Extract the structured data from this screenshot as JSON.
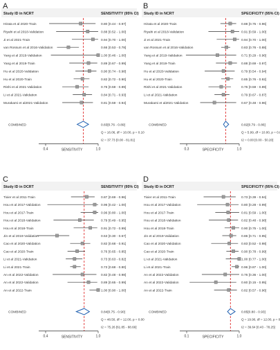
{
  "chart_data": [
    {
      "type": "forest",
      "panel_label": "A",
      "study_header": "Study ID in NCRT",
      "metric_header": "SENSITIVITY (95% CI)",
      "xlabel": "SENSITIVITY",
      "x_ticks": [
        "0.4",
        "1.0"
      ],
      "xlim": [
        0.4,
        1.0
      ],
      "combined_value": 0.83,
      "studies": [
        {
          "label": "Hirata et al 2020-Train",
          "value": 0.8,
          "lo": 0.44,
          "hi": 0.97,
          "ci_text": "0.80 [0.44 - 0.97]"
        },
        {
          "label": "Riyahi et al 2018-Validation",
          "value": 0.88,
          "lo": 0.52,
          "hi": 1.0,
          "ci_text": "0.88 [0.52 - 1.00]"
        },
        {
          "label": "Ji et al 2021-Train",
          "value": 0.94,
          "lo": 0.7,
          "hi": 1.0,
          "ci_text": "0.94 [0.70 - 1.00]"
        },
        {
          "label": "van Rossum et al 2016-Validation",
          "value": 0.66,
          "lo": 0.53,
          "hi": 0.78,
          "ci_text": "0.66 [0.53 - 0.78]"
        },
        {
          "label": "Yang et al 2019-Validation",
          "value": 1.0,
          "lo": 0.46,
          "hi": 1.0,
          "ci_text": "1.00 [0.46 - 1.00]"
        },
        {
          "label": "Yang et al 2019-Train",
          "value": 0.89,
          "lo": 0.67,
          "hi": 0.99,
          "ci_text": "0.89 [0.67 - 0.99]"
        },
        {
          "label": "Hu et al 2020-Validation",
          "value": 0.9,
          "lo": 0.74,
          "hi": 0.98,
          "ci_text": "0.90 [0.74 - 0.98]"
        },
        {
          "label": "Hu et al 2020-Train",
          "value": 0.82,
          "lo": 0.72,
          "hi": 0.9,
          "ci_text": "0.82 [0.72 - 0.90]"
        },
        {
          "label": "Rishi et al 2021-Validation",
          "value": 0.76,
          "lo": 0.59,
          "hi": 0.89,
          "ci_text": "0.76 [0.59 - 0.89]"
        },
        {
          "label": "Li et al 2021-Validation",
          "value": 0.84,
          "lo": 0.71,
          "hi": 0.93,
          "ci_text": "0.84 [0.71 - 0.93]"
        },
        {
          "label": "Murakami et al2021-Validation",
          "value": 0.81,
          "lo": 0.59,
          "hi": 0.94,
          "ci_text": "0.81 [0.59 - 0.94]"
        }
      ],
      "combined": {
        "label": "COMBINED",
        "value": 0.83,
        "lo": 0.76,
        "hi": 0.89,
        "ci_text": "0.83[0.76 - 0.89]"
      },
      "stats": [
        "Q = 16.06, df = 10.00, p = 0.10",
        "I2 = 37.73 [0.00 - 81.81]"
      ]
    },
    {
      "type": "forest",
      "panel_label": "B",
      "study_header": "Study ID in NCRT",
      "metric_header": "SPECIFICITY (95% CI)",
      "xlabel": "SPECIFICITY",
      "x_ticks": [
        "0.3",
        "1.0"
      ],
      "xlim": [
        0.3,
        1.0
      ],
      "combined_value": 0.82,
      "studies": [
        {
          "label": "Hirata et al 2020-Train",
          "value": 0.88,
          "lo": 0.75,
          "hi": 0.96,
          "ci_text": "0.88 [0.75 - 0.96]"
        },
        {
          "label": "Riyahi et al 2018-Validation",
          "value": 0.91,
          "lo": 0.59,
          "hi": 1.0,
          "ci_text": "0.91 [0.59 - 1.00]"
        },
        {
          "label": "Ji et al 2021-Train",
          "value": 0.94,
          "lo": 0.7,
          "hi": 1.0,
          "ci_text": "0.94 [0.70 - 1.00]"
        },
        {
          "label": "van Rossum et al 2016-Validation",
          "value": 0.83,
          "lo": 0.76,
          "hi": 0.88,
          "ci_text": "0.83 [0.76 - 0.88]"
        },
        {
          "label": "Yang et al 2019-Validation",
          "value": 0.71,
          "lo": 0.29,
          "hi": 0.96,
          "ci_text": "0.71 [0.29 - 0.96]"
        },
        {
          "label": "Yang et al 2019-Train",
          "value": 0.88,
          "lo": 0.69,
          "hi": 0.97,
          "ci_text": "0.88 [0.69 - 0.97]"
        },
        {
          "label": "Hu et al 2020-Validation",
          "value": 0.79,
          "lo": 0.54,
          "hi": 0.94,
          "ci_text": "0.79 [0.54 - 0.94]"
        },
        {
          "label": "Hu et al 2020-Train",
          "value": 0.85,
          "lo": 0.76,
          "hi": 0.92,
          "ci_text": "0.85 [0.76 - 0.92]"
        },
        {
          "label": "Rishi et al 2021-Validation",
          "value": 0.76,
          "lo": 0.59,
          "hi": 0.89,
          "ci_text": "0.76 [0.59 - 0.89]"
        },
        {
          "label": "Li et al 2021-Validation",
          "value": 0.79,
          "lo": 0.67,
          "hi": 0.87,
          "ci_text": "0.79 [0.67 - 0.87]"
        },
        {
          "label": "Murakami et al2021-Validation",
          "value": 0.67,
          "lo": 0.48,
          "hi": 0.96,
          "ci_text": "0.67 [0.48 - 0.96]"
        }
      ],
      "combined": {
        "label": "COMBINED",
        "value": 0.82,
        "lo": 0.79,
        "hi": 0.86,
        "ci_text": "0.82[0.79 - 0.86]"
      },
      "stats": [
        "Q = 5.99, df = 10.00, p = 0.82",
        "I2 = 0.00 [0.00 - 50.20]"
      ]
    },
    {
      "type": "forest",
      "panel_label": "C",
      "study_header": "Study ID in DCRT",
      "metric_header": "SENSITIVITY (95% CI)",
      "xlabel": "SENSITIVITY",
      "x_ticks": [
        "0.4",
        "1.0"
      ],
      "xlim": [
        0.4,
        1.0
      ],
      "combined_value": 0.84,
      "studies": [
        {
          "label": "Tixier et al 2011-Train",
          "value": 0.87,
          "lo": 0.69,
          "hi": 0.96,
          "ci_text": "0.87 [0.69 - 0.96]"
        },
        {
          "label": "Hou et al 2017-Validation",
          "value": 0.96,
          "lo": 0.42,
          "hi": 1.0,
          "ci_text": "0.96 [0.42 - 1.00]"
        },
        {
          "label": "Hou et al 2017-Train",
          "value": 0.96,
          "lo": 0.8,
          "hi": 1.0,
          "ci_text": "0.96 [0.80 - 1.00]"
        },
        {
          "label": "Hou et al 2018-Validation",
          "value": 0.79,
          "lo": 0.49,
          "hi": 0.95,
          "ci_text": "0.79 [0.49 - 0.95]"
        },
        {
          "label": "Hou et al 2018-Train",
          "value": 0.91,
          "lo": 0.72,
          "hi": 0.99,
          "ci_text": "0.91 [0.72 - 0.99]"
        },
        {
          "label": "Jin et al 2019-Validation",
          "value": 0.53,
          "lo": 0.3,
          "hi": 0.67,
          "ci_text": "0.53 [0.30 - 0.67]"
        },
        {
          "label": "Cao et al 2020-Validation",
          "value": 0.82,
          "lo": 0.68,
          "hi": 0.91,
          "ci_text": "0.82 [0.68 - 0.91]"
        },
        {
          "label": "Cao et al 2020-Train",
          "value": 0.76,
          "lo": 0.65,
          "hi": 0.85,
          "ci_text": "0.76 [0.65 - 0.85]"
        },
        {
          "label": "Li et al 2021-Validation",
          "value": 0.73,
          "lo": 0.63,
          "hi": 0.82,
          "ci_text": "0.73 [0.63 - 0.82]"
        },
        {
          "label": "Li et al 2021-Train",
          "value": 0.73,
          "lo": 0.68,
          "hi": 0.8,
          "ci_text": "0.73 [0.68 - 0.80]"
        },
        {
          "label": "An et al 2022-Validation",
          "value": 0.82,
          "lo": 0.48,
          "hi": 0.98,
          "ci_text": "0.82 [0.48 - 0.98]"
        },
        {
          "label": "An et al 2022-Validation",
          "value": 0.89,
          "lo": 0.65,
          "hi": 0.99,
          "ci_text": "0.89 [0.65 - 0.99]"
        },
        {
          "label": "An et al 2022-Train",
          "value": 1.0,
          "lo": 0.9,
          "hi": 1.0,
          "ci_text": "1.00 [0.90 - 1.00]"
        }
      ],
      "combined": {
        "label": "COMBINED",
        "value": 0.84,
        "lo": 0.75,
        "hi": 0.9,
        "ci_text": "0.84[0.75 - 0.90]"
      },
      "stats": [
        "Q = 48.50, df = 12.00, p = 0.00",
        "I2 = 75.26 [61.85 - 88.66]"
      ]
    },
    {
      "type": "forest",
      "panel_label": "D",
      "study_header": "Study ID in DCRT",
      "metric_header": "SPECIFICITY (95% CI)",
      "xlabel": "SPECIFICITY",
      "x_ticks": [
        "0.1",
        "1.0"
      ],
      "xlim": [
        0.1,
        1.0
      ],
      "combined_value": 0.85,
      "studies": [
        {
          "label": "Tixier et al 2011-Train",
          "value": 0.73,
          "lo": 0.39,
          "hi": 0.94,
          "ci_text": "0.73 [0.39 - 0.94]"
        },
        {
          "label": "Hou et al 2017-Validation",
          "value": 0.8,
          "lo": 0.28,
          "hi": 0.99,
          "ci_text": "0.80 [0.28 - 0.99]"
        },
        {
          "label": "Hou et al 2017-Train",
          "value": 0.81,
          "lo": 0.59,
          "hi": 1.0,
          "ci_text": "0.81 [0.59 - 1.00]"
        },
        {
          "label": "Hou et al 2018-Validation",
          "value": 0.82,
          "lo": 0.48,
          "hi": 0.98,
          "ci_text": "0.82 [0.48 - 0.98]"
        },
        {
          "label": "Hou et al 2018-Train",
          "value": 0.9,
          "lo": 0.75,
          "hi": 1.0,
          "ci_text": "0.90 [0.75 - 1.00]"
        },
        {
          "label": "Jin et al 2019-Validation",
          "value": 0.86,
          "lo": 0.71,
          "hi": 0.95,
          "ci_text": "0.86 [0.71 - 0.95]"
        },
        {
          "label": "Cao et al 2020-Validation",
          "value": 0.83,
          "lo": 0.52,
          "hi": 0.98,
          "ci_text": "0.83 [0.52 - 0.98]"
        },
        {
          "label": "Cao et al 2020-Train",
          "value": 0.9,
          "lo": 0.78,
          "hi": 0.99,
          "ci_text": "0.90 [0.78 - 0.99]"
        },
        {
          "label": "Li et al 2021-Validation",
          "value": 1.0,
          "lo": 0.77,
          "hi": 1.0,
          "ci_text": "1.00 [0.77 - 1.00]"
        },
        {
          "label": "Li et al 2021-Train",
          "value": 0.96,
          "lo": 0.87,
          "hi": 1.0,
          "ci_text": "0.96 [0.87 - 1.00]"
        },
        {
          "label": "An et al 2022-Validation",
          "value": 0.76,
          "lo": 0.36,
          "hi": 1.0,
          "ci_text": "0.76 [0.36 - 1.00]"
        },
        {
          "label": "An et al 2022-Validation",
          "value": 0.6,
          "lo": 0.15,
          "hi": 0.95,
          "ci_text": "0.60 [0.15 - 0.95]"
        },
        {
          "label": "An et al 2022-Train",
          "value": 0.82,
          "lo": 0.57,
          "hi": 0.96,
          "ci_text": "0.82 [0.57 - 0.96]"
        }
      ],
      "combined": {
        "label": "COMBINED",
        "value": 0.85,
        "lo": 0.8,
        "hi": 0.93,
        "ci_text": "0.85[0.80 - 0.93]"
      },
      "stats": [
        "Q = 19.90, df = 12.00, p = 0.07",
        "I2 = 39.64 [0.43 - 78.25]"
      ]
    }
  ]
}
